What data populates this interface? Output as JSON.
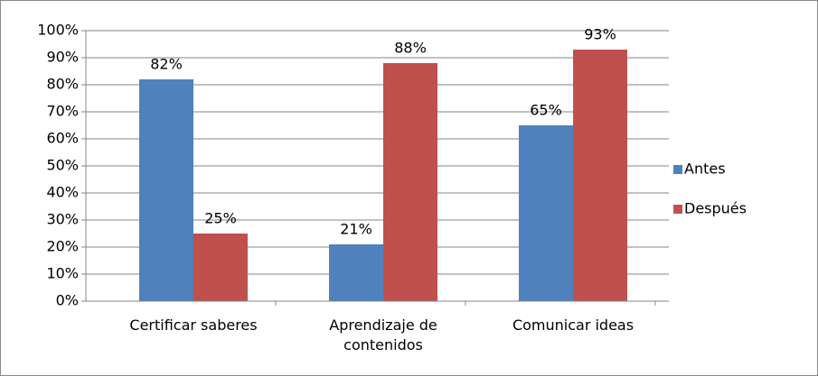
{
  "chart_data": {
    "type": "bar",
    "categories": [
      "Certificar saberes",
      "Aprendizaje de contenidos",
      "Comunicar ideas"
    ],
    "series": [
      {
        "name": "Antes",
        "color": "#4f81bd",
        "values": [
          82,
          21,
          65
        ],
        "value_labels": [
          "82%",
          "21%",
          "65%"
        ]
      },
      {
        "name": "Después",
        "color": "#c0504d",
        "values": [
          25,
          88,
          93
        ],
        "value_labels": [
          "25%",
          "88%",
          "93%"
        ]
      }
    ],
    "ylim": [
      0,
      100
    ],
    "yticks": [
      {
        "value": 0,
        "label": "0%"
      },
      {
        "value": 10,
        "label": "10%"
      },
      {
        "value": 20,
        "label": "20%"
      },
      {
        "value": 30,
        "label": "30%"
      },
      {
        "value": 40,
        "label": "40%"
      },
      {
        "value": 50,
        "label": "50%"
      },
      {
        "value": 60,
        "label": "60%"
      },
      {
        "value": 70,
        "label": "70%"
      },
      {
        "value": 80,
        "label": "80%"
      },
      {
        "value": 90,
        "label": "90%"
      },
      {
        "value": 100,
        "label": "100%"
      }
    ],
    "grid": true,
    "legend": "right"
  }
}
